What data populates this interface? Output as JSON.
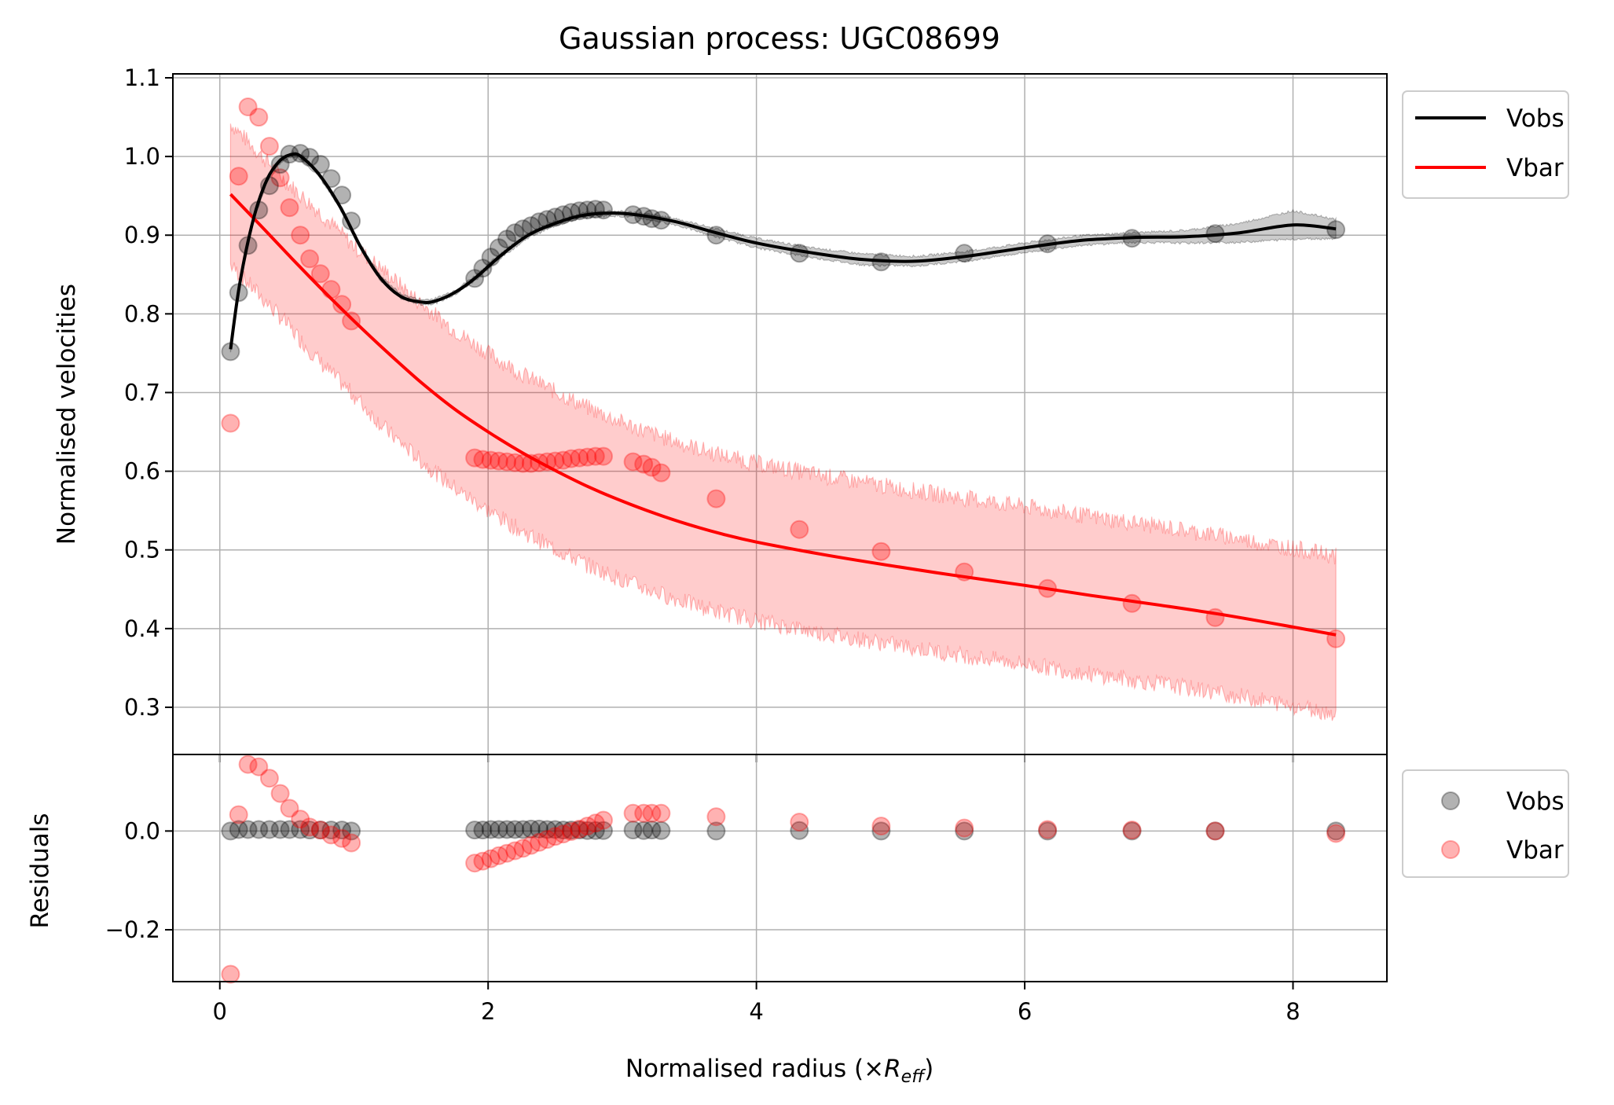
{
  "chart_data": [
    {
      "type": "line",
      "title": "Gaussian process: UGC08699",
      "ylabel": "Normalised velocities",
      "xlim": [
        -0.35,
        8.7
      ],
      "ylim": [
        0.24,
        1.105
      ],
      "x_ticks": [
        "0",
        "2",
        "4",
        "6",
        "8"
      ],
      "y_ticks": [
        "0.3",
        "0.4",
        "0.5",
        "0.6",
        "0.7",
        "0.8",
        "0.9",
        "1.0",
        "1.1"
      ],
      "grid": true,
      "legend_position": "outside-right",
      "legend": [
        "Vobs",
        "Vbar"
      ],
      "series": [
        {
          "name": "Vobs",
          "color": "#000000",
          "points_x": [
            0.08,
            0.14,
            0.21,
            0.29,
            0.37,
            0.45,
            0.52,
            0.6,
            0.67,
            0.75,
            0.83,
            0.91,
            0.98,
            1.9,
            1.96,
            2.02,
            2.08,
            2.14,
            2.2,
            2.26,
            2.32,
            2.38,
            2.44,
            2.5,
            2.56,
            2.62,
            2.68,
            2.74,
            2.8,
            2.86,
            3.08,
            3.16,
            3.22,
            3.29,
            3.7,
            4.32,
            4.93,
            5.55,
            6.17,
            6.8,
            7.42,
            8.32
          ],
          "points_y": [
            0.752,
            0.827,
            0.887,
            0.932,
            0.963,
            0.99,
            1.003,
            1.004,
            0.999,
            0.99,
            0.972,
            0.951,
            0.918,
            0.845,
            0.858,
            0.872,
            0.884,
            0.895,
            0.903,
            0.908,
            0.912,
            0.917,
            0.92,
            0.923,
            0.926,
            0.929,
            0.931,
            0.932,
            0.933,
            0.932,
            0.926,
            0.924,
            0.921,
            0.919,
            0.9,
            0.877,
            0.866,
            0.877,
            0.889,
            0.896,
            0.902,
            0.907
          ],
          "fit_x": [
            0.08,
            0.15,
            0.25,
            0.35,
            0.45,
            0.55,
            0.62,
            0.75,
            0.9,
            1.05,
            1.2,
            1.35,
            1.5,
            1.6,
            1.75,
            1.9,
            2.1,
            2.3,
            2.5,
            2.7,
            2.9,
            3.1,
            3.4,
            3.7,
            4.0,
            4.4,
            4.8,
            5.2,
            5.6,
            6.0,
            6.4,
            6.8,
            7.2,
            7.6,
            8.0,
            8.32
          ],
          "fit_y": [
            0.755,
            0.84,
            0.92,
            0.97,
            0.995,
            1.003,
            0.998,
            0.975,
            0.935,
            0.885,
            0.845,
            0.822,
            0.815,
            0.816,
            0.827,
            0.845,
            0.875,
            0.9,
            0.915,
            0.925,
            0.928,
            0.926,
            0.917,
            0.903,
            0.89,
            0.878,
            0.869,
            0.867,
            0.874,
            0.884,
            0.893,
            0.897,
            0.898,
            0.903,
            0.913,
            0.908
          ],
          "band_width": [
            0.004,
            0.004,
            0.003,
            0.003,
            0.003,
            0.003,
            0.003,
            0.003,
            0.003,
            0.003,
            0.003,
            0.003,
            0.003,
            0.003,
            0.003,
            0.003,
            0.003,
            0.003,
            0.003,
            0.003,
            0.003,
            0.003,
            0.004,
            0.005,
            0.006,
            0.006,
            0.007,
            0.006,
            0.006,
            0.006,
            0.006,
            0.006,
            0.008,
            0.012,
            0.018,
            0.012
          ]
        },
        {
          "name": "Vbar",
          "color": "#ff0000",
          "points_x": [
            0.08,
            0.14,
            0.21,
            0.29,
            0.37,
            0.45,
            0.52,
            0.6,
            0.67,
            0.75,
            0.83,
            0.91,
            0.98,
            1.9,
            1.96,
            2.02,
            2.08,
            2.14,
            2.2,
            2.26,
            2.32,
            2.38,
            2.44,
            2.5,
            2.56,
            2.62,
            2.68,
            2.74,
            2.8,
            2.86,
            3.08,
            3.16,
            3.22,
            3.29,
            3.7,
            4.32,
            4.93,
            5.55,
            6.17,
            6.8,
            7.42,
            8.32
          ],
          "points_y": [
            0.661,
            0.975,
            1.063,
            1.05,
            1.013,
            0.973,
            0.935,
            0.9,
            0.87,
            0.851,
            0.831,
            0.812,
            0.791,
            0.617,
            0.615,
            0.614,
            0.613,
            0.612,
            0.611,
            0.61,
            0.61,
            0.611,
            0.612,
            0.613,
            0.614,
            0.616,
            0.617,
            0.618,
            0.619,
            0.619,
            0.612,
            0.609,
            0.605,
            0.598,
            0.565,
            0.526,
            0.498,
            0.472,
            0.451,
            0.432,
            0.414,
            0.387
          ],
          "fit_x": [
            0.08,
            0.3,
            0.5,
            0.75,
            1.0,
            1.25,
            1.5,
            1.75,
            2.0,
            2.25,
            2.5,
            2.75,
            3.0,
            3.25,
            3.5,
            3.75,
            4.0,
            4.5,
            5.0,
            5.5,
            6.0,
            6.5,
            7.0,
            7.5,
            8.0,
            8.32
          ],
          "fit_y": [
            0.952,
            0.913,
            0.877,
            0.833,
            0.791,
            0.751,
            0.713,
            0.679,
            0.65,
            0.624,
            0.601,
            0.58,
            0.562,
            0.546,
            0.532,
            0.52,
            0.51,
            0.494,
            0.48,
            0.467,
            0.455,
            0.442,
            0.43,
            0.417,
            0.402,
            0.392
          ],
          "band_width": [
            0.09,
            0.09,
            0.09,
            0.095,
            0.095,
            0.1,
            0.1,
            0.1,
            0.1,
            0.1,
            0.1,
            0.1,
            0.1,
            0.1,
            0.1,
            0.1,
            0.1,
            0.1,
            0.1,
            0.1,
            0.1,
            0.1,
            0.1,
            0.1,
            0.1,
            0.1
          ]
        }
      ]
    },
    {
      "type": "scatter",
      "xlabel": "Normalised radius (×R_eff)",
      "xlabel_parts": [
        "Normalised radius (×",
        "R",
        "eff",
        ")"
      ],
      "ylabel": "Residuals",
      "xlim": [
        -0.35,
        8.7
      ],
      "ylim": [
        -0.305,
        0.155
      ],
      "x_ticks": [
        "0",
        "2",
        "4",
        "6",
        "8"
      ],
      "y_ticks": [
        "0.0",
        "−0.2"
      ],
      "grid": true,
      "legend_position": "outside-right",
      "legend": [
        "Vobs",
        "Vbar"
      ],
      "series": [
        {
          "name": "Vobs",
          "color": "#000000",
          "x": [
            0.08,
            0.14,
            0.21,
            0.29,
            0.37,
            0.45,
            0.52,
            0.6,
            0.67,
            0.75,
            0.83,
            0.91,
            0.98,
            1.9,
            1.96,
            2.02,
            2.08,
            2.14,
            2.2,
            2.26,
            2.32,
            2.38,
            2.44,
            2.5,
            2.56,
            2.62,
            2.68,
            2.74,
            2.8,
            2.86,
            3.08,
            3.16,
            3.22,
            3.29,
            3.7,
            4.32,
            4.93,
            5.55,
            6.17,
            6.8,
            7.42,
            8.32
          ],
          "y": [
            0.0,
            0.003,
            0.003,
            0.003,
            0.003,
            0.003,
            0.003,
            0.003,
            0.002,
            0.002,
            0.002,
            0.002,
            0.0,
            0.002,
            0.002,
            0.003,
            0.003,
            0.003,
            0.003,
            0.003,
            0.004,
            0.004,
            0.003,
            0.003,
            0.002,
            0.002,
            0.002,
            0.001,
            0.001,
            0.001,
            0.002,
            0.001,
            0.002,
            0.001,
            0.0,
            0.001,
            0.0,
            0.0,
            0.0,
            0.0,
            0.0,
            0.0
          ]
        },
        {
          "name": "Vbar",
          "color": "#ff0000",
          "x": [
            0.08,
            0.14,
            0.21,
            0.29,
            0.37,
            0.45,
            0.52,
            0.6,
            0.67,
            0.75,
            0.83,
            0.91,
            0.98,
            1.9,
            1.96,
            2.02,
            2.08,
            2.14,
            2.2,
            2.26,
            2.32,
            2.38,
            2.44,
            2.5,
            2.56,
            2.62,
            2.68,
            2.74,
            2.8,
            2.86,
            3.08,
            3.16,
            3.22,
            3.29,
            3.7,
            4.32,
            4.93,
            5.55,
            6.17,
            6.8,
            7.42,
            8.32
          ],
          "y": [
            -0.29,
            0.033,
            0.135,
            0.13,
            0.107,
            0.076,
            0.046,
            0.024,
            0.008,
            0.002,
            -0.008,
            -0.015,
            -0.024,
            -0.065,
            -0.061,
            -0.056,
            -0.05,
            -0.045,
            -0.04,
            -0.035,
            -0.029,
            -0.023,
            -0.017,
            -0.011,
            -0.006,
            -0.001,
            0.004,
            0.01,
            0.016,
            0.022,
            0.036,
            0.036,
            0.036,
            0.036,
            0.029,
            0.018,
            0.01,
            0.006,
            0.003,
            0.002,
            0.0,
            -0.005
          ]
        }
      ]
    }
  ]
}
